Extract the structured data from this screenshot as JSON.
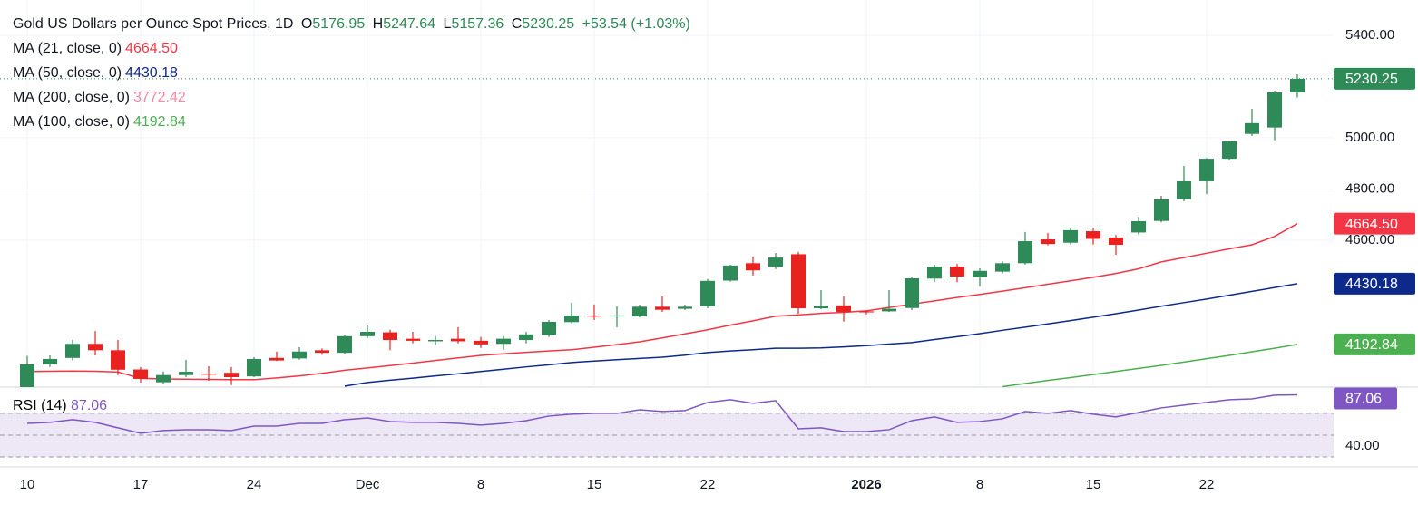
{
  "chart_data": {
    "type": "candlestick",
    "title": "Gold US Dollars per Ounce Spot Prices, 1D",
    "ohlc_labels": [
      "O",
      "H",
      "L",
      "C"
    ],
    "change": "+53.54 (+1.03%)",
    "up_color": "#2e8b57",
    "down_color": "#e8221f",
    "categories": [
      "10",
      null,
      null,
      null,
      null,
      "17",
      null,
      null,
      null,
      null,
      "24",
      null,
      null,
      null,
      null,
      "Dec",
      null,
      null,
      null,
      null,
      "8",
      null,
      null,
      null,
      null,
      "15",
      null,
      null,
      null,
      null,
      "22",
      null,
      null,
      null,
      null,
      null,
      null,
      "2026",
      null,
      null,
      null,
      null,
      "8",
      null,
      null,
      null,
      null,
      "15",
      null,
      null,
      null,
      null,
      "22",
      null,
      null,
      null,
      null
    ],
    "series": [
      {
        "name": "Gold",
        "open": [
          4000,
          4115,
          4140,
          4195,
          4170,
          4095,
          4045,
          4073,
          4078,
          4082,
          4068,
          4140,
          4138,
          4170,
          4160,
          4225,
          4240,
          4215,
          4205,
          4215,
          4207,
          4195,
          4210,
          4230,
          4280,
          4305,
          4303,
          4302,
          4340,
          4332,
          4342,
          4442,
          4510,
          4495,
          4545,
          4334,
          4345,
          4322,
          4322,
          4335,
          4450,
          4497,
          4455,
          4477,
          4510,
          4603,
          4590,
          4635,
          4610,
          4630,
          4675,
          4760,
          4830,
          4918,
          5015,
          5040,
          5176.95
        ],
        "high": [
          4148,
          4150,
          4210,
          4245,
          4210,
          4104,
          4087,
          4132,
          4108,
          4104,
          4143,
          4165,
          4182,
          4177,
          4228,
          4267,
          4250,
          4242,
          4225,
          4260,
          4222,
          4225,
          4242,
          4288,
          4356,
          4349,
          4342,
          4348,
          4380,
          4348,
          4448,
          4504,
          4536,
          4550,
          4554,
          4405,
          4380,
          4325,
          4405,
          4458,
          4504,
          4507,
          4490,
          4517,
          4632,
          4628,
          4646,
          4646,
          4620,
          4692,
          4773,
          4890,
          4921,
          4989,
          5113,
          5184,
          5247.64
        ],
        "low": [
          3995,
          4105,
          4130,
          4150,
          4073,
          4044,
          4037,
          4065,
          4051,
          4034,
          4065,
          4128,
          4133,
          4152,
          4157,
          4218,
          4170,
          4197,
          4190,
          4197,
          4179,
          4172,
          4197,
          4222,
          4275,
          4288,
          4260,
          4298,
          4320,
          4327,
          4334,
          4438,
          4462,
          4487,
          4313,
          4330,
          4282,
          4310,
          4320,
          4327,
          4436,
          4436,
          4420,
          4470,
          4505,
          4580,
          4583,
          4583,
          4543,
          4623,
          4670,
          4752,
          4780,
          4911,
          5007,
          4990,
          5157.36
        ],
        "close": [
          4115,
          4136,
          4195,
          4170,
          4094,
          4058,
          4073,
          4086,
          4076,
          4065,
          4136,
          4130,
          4165,
          4160,
          4225,
          4242,
          4210,
          4207,
          4210,
          4205,
          4193,
          4215,
          4232,
          4281,
          4306,
          4302,
          4306,
          4340,
          4328,
          4340,
          4441,
          4501,
          4482,
          4532,
          4334,
          4343,
          4320,
          4318,
          4332,
          4451,
          4497,
          4458,
          4480,
          4510,
          4596,
          4585,
          4639,
          4605,
          4582,
          4674,
          4759,
          4830,
          4918,
          4986,
          5057,
          5177,
          5230.25
        ]
      }
    ],
    "overlays": [
      {
        "name": "MA (21, close, 0)",
        "color": "#f23645",
        "last_label": "4664.50",
        "values": [
          4087,
          4088,
          4089,
          4088,
          4085,
          4060,
          4058,
          4057,
          4056,
          4055,
          4055,
          4062,
          4070,
          4080,
          4092,
          4101,
          4110,
          4120,
          4130,
          4140,
          4150,
          4156,
          4162,
          4167,
          4172,
          4182,
          4192,
          4203,
          4218,
          4234,
          4250,
          4268,
          4285,
          4303,
          4308,
          4314,
          4318,
          4324,
          4337,
          4350,
          4363,
          4376,
          4388,
          4401,
          4414,
          4428,
          4441,
          4455,
          4470,
          4488,
          4515,
          4532,
          4549,
          4566,
          4582,
          4615,
          4664.5
        ]
      },
      {
        "name": "MA (50, close, 0)",
        "color": "#0d2a8a",
        "last_label": "4430.18",
        "values": [
          null,
          null,
          null,
          null,
          null,
          null,
          null,
          null,
          null,
          null,
          null,
          null,
          null,
          null,
          4030,
          4044,
          4053,
          4061,
          4070,
          4078,
          4087,
          4096,
          4105,
          4113,
          4122,
          4128,
          4133,
          4138,
          4143,
          4151,
          4161,
          4167,
          4172,
          4178,
          4178,
          4179,
          4183,
          4188,
          4194,
          4200,
          4212,
          4223,
          4235,
          4248,
          4260,
          4273,
          4286,
          4299,
          4313,
          4327,
          4342,
          4356,
          4370,
          4385,
          4400,
          4415,
          4430.18
        ]
      },
      {
        "name": "MA (200, close, 0)",
        "color": "#f28aa6",
        "last_label": "3772.42",
        "values": [
          null,
          null,
          null,
          null,
          null,
          null,
          null,
          null,
          null,
          null,
          null,
          null,
          null,
          null,
          null,
          null,
          null,
          null,
          null,
          null,
          null,
          null,
          null,
          null,
          null,
          null,
          null,
          null,
          null,
          null,
          null,
          null,
          null,
          null,
          null,
          null,
          null,
          null,
          null,
          null,
          null,
          null,
          null,
          null,
          null,
          null,
          null,
          null,
          null,
          null,
          null,
          null,
          null,
          null,
          null,
          null,
          null
        ]
      },
      {
        "name": "MA (100, close, 0)",
        "color": "#4caf50",
        "last_label": "4192.84",
        "values": [
          null,
          null,
          null,
          null,
          null,
          null,
          null,
          null,
          null,
          null,
          null,
          null,
          null,
          null,
          null,
          null,
          null,
          null,
          null,
          null,
          null,
          null,
          null,
          null,
          null,
          null,
          null,
          null,
          null,
          null,
          null,
          null,
          null,
          null,
          null,
          null,
          null,
          null,
          null,
          null,
          null,
          null,
          null,
          4028,
          4040,
          4052,
          4063,
          4075,
          4087,
          4099,
          4111,
          4124,
          4137,
          4150,
          4164,
          4178,
          4192.84
        ]
      }
    ],
    "ylim": [
      4026,
      5538
    ],
    "yticks": [
      {
        "value": 4600,
        "label": "4600.00"
      },
      {
        "value": 4800,
        "label": "4800.00"
      },
      {
        "value": 5000,
        "label": "5000.00"
      },
      {
        "value": 5400,
        "label": "5400.00"
      }
    ],
    "grid": true,
    "rsi": {
      "name": "RSI (14)",
      "color": "#7e57c2",
      "band_color": "#ede7f6",
      "values": [
        60.8,
        61.7,
        64.2,
        61.7,
        56.7,
        51.7,
        54.2,
        55,
        55,
        54.2,
        58.3,
        58.3,
        60.8,
        60.8,
        64.2,
        65.8,
        62.5,
        61.7,
        61.7,
        60.8,
        59.2,
        60.8,
        63.3,
        67.5,
        69.2,
        70,
        70,
        73.3,
        71.7,
        72.5,
        80,
        82.5,
        79.2,
        81.7,
        55.8,
        56.7,
        53.3,
        53.3,
        55,
        63.3,
        66.7,
        61.7,
        62.5,
        65,
        71.7,
        70,
        72.5,
        69.2,
        66.7,
        70.8,
        75,
        77.5,
        80,
        82.5,
        83.3,
        86.7,
        87.06
      ],
      "ylim": [
        20.8,
        94.1
      ],
      "yticks": [
        {
          "value": 40,
          "label": "40.00"
        }
      ],
      "bands": [
        30,
        50,
        70
      ]
    }
  }
}
